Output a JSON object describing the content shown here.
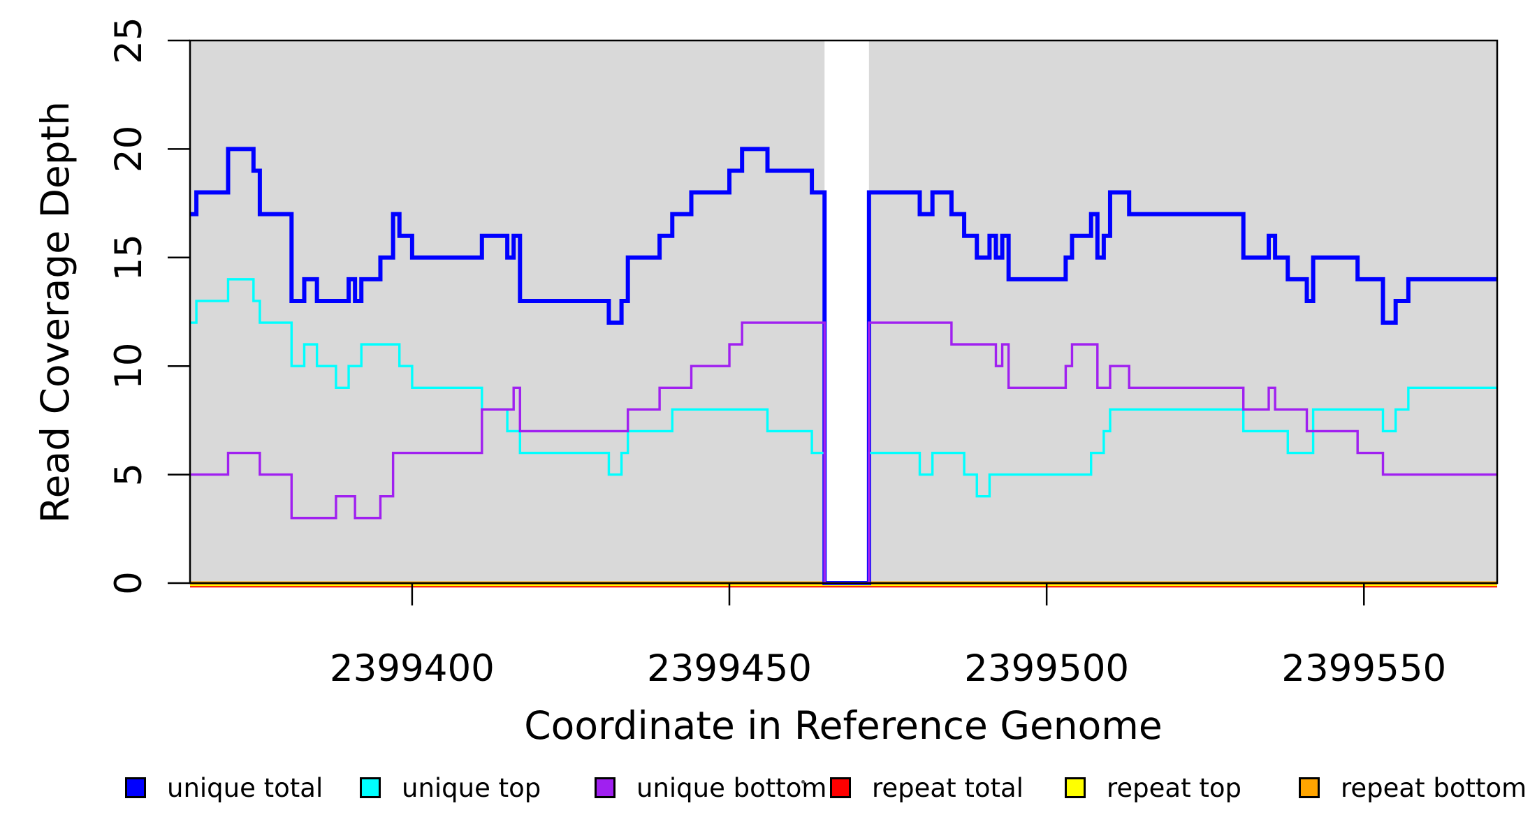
{
  "chart_data": {
    "type": "line",
    "subtype": "step-coverage",
    "title": "",
    "xlabel": "Coordinate in Reference Genome",
    "ylabel": "Read Coverage Depth",
    "x_domain": [
      2399365,
      2399571
    ],
    "ylim": [
      0,
      25
    ],
    "x_ticks": [
      2399400,
      2399450,
      2399500,
      2399550
    ],
    "y_ticks": [
      0,
      5,
      10,
      15,
      20,
      25
    ],
    "grid": false,
    "legend_position": "bottom",
    "background_color": "#ffffff",
    "shaded_region_color": "#d9d9d9",
    "frame_color": "#000000",
    "shaded_regions": [
      {
        "from": 2399365,
        "to": 2399465
      },
      {
        "from": 2399472,
        "to": 2399571
      }
    ],
    "coverage_gap": {
      "from": 2399465,
      "to": 2399472
    },
    "series": [
      {
        "name": "repeat total",
        "color": "#ff0000",
        "width": 8.5,
        "steps": [
          [
            2399365,
            0
          ]
        ]
      },
      {
        "name": "repeat top",
        "color": "#ffff00",
        "width": 6.5,
        "steps": [
          [
            2399365,
            0
          ]
        ]
      },
      {
        "name": "repeat bottom",
        "color": "#ffa500",
        "width": 5,
        "steps": [
          [
            2399365,
            0
          ]
        ]
      },
      {
        "name": "unique total",
        "color": "#0000ff",
        "width": 6,
        "steps": [
          [
            2399365,
            17
          ],
          [
            2399366,
            18
          ],
          [
            2399371,
            20
          ],
          [
            2399375,
            19
          ],
          [
            2399376,
            17
          ],
          [
            2399381,
            13
          ],
          [
            2399383,
            14
          ],
          [
            2399385,
            13
          ],
          [
            2399390,
            14
          ],
          [
            2399391,
            13
          ],
          [
            2399392,
            14
          ],
          [
            2399395,
            15
          ],
          [
            2399397,
            17
          ],
          [
            2399398,
            16
          ],
          [
            2399400,
            15
          ],
          [
            2399411,
            16
          ],
          [
            2399415,
            15
          ],
          [
            2399416,
            16
          ],
          [
            2399417,
            13
          ],
          [
            2399431,
            12
          ],
          [
            2399433,
            13
          ],
          [
            2399434,
            15
          ],
          [
            2399439,
            16
          ],
          [
            2399441,
            17
          ],
          [
            2399444,
            18
          ],
          [
            2399450,
            19
          ],
          [
            2399452,
            20
          ],
          [
            2399456,
            19
          ],
          [
            2399463,
            18
          ],
          [
            2399465,
            0
          ],
          [
            2399472,
            18
          ],
          [
            2399480,
            17
          ],
          [
            2399482,
            18
          ],
          [
            2399485,
            17
          ],
          [
            2399487,
            16
          ],
          [
            2399489,
            15
          ],
          [
            2399491,
            16
          ],
          [
            2399492,
            15
          ],
          [
            2399493,
            16
          ],
          [
            2399494,
            14
          ],
          [
            2399503,
            15
          ],
          [
            2399504,
            16
          ],
          [
            2399507,
            17
          ],
          [
            2399508,
            15
          ],
          [
            2399509,
            16
          ],
          [
            2399510,
            18
          ],
          [
            2399513,
            17
          ],
          [
            2399531,
            15
          ],
          [
            2399535,
            16
          ],
          [
            2399536,
            15
          ],
          [
            2399538,
            14
          ],
          [
            2399541,
            13
          ],
          [
            2399542,
            15
          ],
          [
            2399549,
            14
          ],
          [
            2399553,
            12
          ],
          [
            2399555,
            13
          ],
          [
            2399557,
            14
          ]
        ]
      },
      {
        "name": "unique top",
        "color": "#00ffff",
        "width": 3.4,
        "steps": [
          [
            2399365,
            12
          ],
          [
            2399366,
            13
          ],
          [
            2399371,
            14
          ],
          [
            2399375,
            13
          ],
          [
            2399376,
            12
          ],
          [
            2399381,
            10
          ],
          [
            2399383,
            11
          ],
          [
            2399385,
            10
          ],
          [
            2399388,
            9
          ],
          [
            2399390,
            10
          ],
          [
            2399392,
            11
          ],
          [
            2399398,
            10
          ],
          [
            2399400,
            9
          ],
          [
            2399411,
            8
          ],
          [
            2399415,
            7
          ],
          [
            2399417,
            6
          ],
          [
            2399431,
            5
          ],
          [
            2399433,
            6
          ],
          [
            2399434,
            7
          ],
          [
            2399441,
            8
          ],
          [
            2399456,
            7
          ],
          [
            2399463,
            6
          ],
          [
            2399465,
            0
          ],
          [
            2399472,
            6
          ],
          [
            2399480,
            5
          ],
          [
            2399482,
            6
          ],
          [
            2399487,
            5
          ],
          [
            2399489,
            4
          ],
          [
            2399491,
            5
          ],
          [
            2399507,
            6
          ],
          [
            2399509,
            7
          ],
          [
            2399510,
            8
          ],
          [
            2399531,
            7
          ],
          [
            2399538,
            6
          ],
          [
            2399542,
            8
          ],
          [
            2399553,
            7
          ],
          [
            2399555,
            8
          ],
          [
            2399557,
            9
          ]
        ]
      },
      {
        "name": "unique bottom",
        "color": "#a020f0",
        "width": 3.4,
        "steps": [
          [
            2399365,
            5
          ],
          [
            2399371,
            6
          ],
          [
            2399376,
            5
          ],
          [
            2399381,
            3
          ],
          [
            2399388,
            4
          ],
          [
            2399391,
            3
          ],
          [
            2399395,
            4
          ],
          [
            2399397,
            6
          ],
          [
            2399411,
            8
          ],
          [
            2399416,
            9
          ],
          [
            2399417,
            7
          ],
          [
            2399434,
            8
          ],
          [
            2399439,
            9
          ],
          [
            2399444,
            10
          ],
          [
            2399450,
            11
          ],
          [
            2399452,
            12
          ],
          [
            2399465,
            0
          ],
          [
            2399472,
            12
          ],
          [
            2399485,
            11
          ],
          [
            2399492,
            10
          ],
          [
            2399493,
            11
          ],
          [
            2399494,
            9
          ],
          [
            2399503,
            10
          ],
          [
            2399504,
            11
          ],
          [
            2399508,
            9
          ],
          [
            2399510,
            10
          ],
          [
            2399513,
            9
          ],
          [
            2399531,
            8
          ],
          [
            2399535,
            9
          ],
          [
            2399536,
            8
          ],
          [
            2399541,
            7
          ],
          [
            2399549,
            6
          ],
          [
            2399553,
            5
          ]
        ]
      }
    ],
    "legend": [
      {
        "label": "unique total",
        "color": "#0000ff"
      },
      {
        "label": "unique top",
        "color": "#00ffff"
      },
      {
        "label": "unique bottom",
        "color": "#a020f0"
      },
      {
        "label": "repeat total",
        "color": "#ff0000"
      },
      {
        "label": "repeat top",
        "color": "#ffff00"
      },
      {
        "label": "repeat bottom",
        "color": "#ffa500"
      }
    ]
  }
}
